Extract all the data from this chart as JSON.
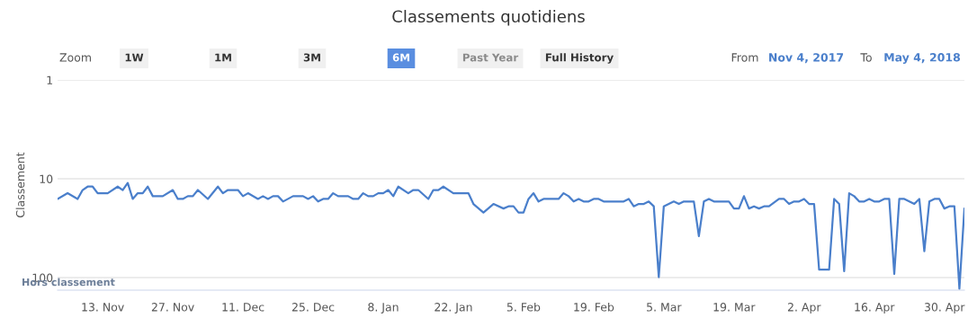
{
  "chart_data": {
    "type": "line",
    "title": "Classements quotidiens",
    "ylabel": "Classement",
    "annotations": [
      "Zoom",
      "1W",
      "1M",
      "3M",
      "6M",
      "Past Year",
      "Full History",
      "From",
      "Nov 4, 2017",
      "To",
      "May 4, 2018",
      "Hors classement"
    ],
    "x": [
      "2017-11-04",
      "2017-11-06",
      "2017-11-08",
      "2017-11-09",
      "2017-11-10",
      "2017-11-11",
      "2017-11-12",
      "2017-11-14",
      "2017-11-16",
      "2017-11-17",
      "2017-11-18",
      "2017-11-19",
      "2017-11-20",
      "2017-11-21",
      "2017-11-22",
      "2017-11-23",
      "2017-11-25",
      "2017-11-27",
      "2017-11-28",
      "2017-11-29",
      "2017-11-30",
      "2017-12-01",
      "2017-12-02",
      "2017-12-04",
      "2017-12-06",
      "2017-12-07",
      "2017-12-08",
      "2017-12-10",
      "2017-12-11",
      "2017-12-12",
      "2017-12-14",
      "2017-12-15",
      "2017-12-16",
      "2017-12-17",
      "2017-12-18",
      "2017-12-19",
      "2017-12-21",
      "2017-12-23",
      "2017-12-24",
      "2017-12-25",
      "2017-12-26",
      "2017-12-27",
      "2017-12-28",
      "2017-12-29",
      "2017-12-30",
      "2018-01-01",
      "2018-01-02",
      "2018-01-03",
      "2018-01-04",
      "2018-01-05",
      "2018-01-06",
      "2018-01-07",
      "2018-01-08",
      "2018-01-09",
      "2018-01-10",
      "2018-01-11",
      "2018-01-13",
      "2018-01-14",
      "2018-01-15",
      "2018-01-17",
      "2018-01-18",
      "2018-01-19",
      "2018-01-20",
      "2018-01-22",
      "2018-01-25",
      "2018-01-26",
      "2018-01-28",
      "2018-01-30",
      "2018-02-01",
      "2018-02-02",
      "2018-02-03",
      "2018-02-04",
      "2018-02-05",
      "2018-02-06",
      "2018-02-07",
      "2018-02-08",
      "2018-02-09",
      "2018-02-12",
      "2018-02-13",
      "2018-02-14",
      "2018-02-15",
      "2018-02-16",
      "2018-02-17",
      "2018-02-18",
      "2018-02-19",
      "2018-02-20",
      "2018-02-21",
      "2018-02-25",
      "2018-02-26",
      "2018-02-27",
      "2018-02-28",
      "2018-03-01",
      "2018-03-02",
      "2018-03-03",
      "2018-03-04",
      "2018-03-05",
      "2018-03-06",
      "2018-03-07",
      "2018-03-08",
      "2018-03-09",
      "2018-03-11",
      "2018-03-12",
      "2018-03-13",
      "2018-03-14",
      "2018-03-15",
      "2018-03-18",
      "2018-03-19",
      "2018-03-20",
      "2018-03-21",
      "2018-03-22",
      "2018-03-23",
      "2018-03-24",
      "2018-03-25",
      "2018-03-26",
      "2018-03-28",
      "2018-03-29",
      "2018-03-30",
      "2018-03-31",
      "2018-04-01",
      "2018-04-02",
      "2018-04-03",
      "2018-04-04",
      "2018-04-05",
      "2018-04-07",
      "2018-04-08",
      "2018-04-09",
      "2018-04-10",
      "2018-04-11",
      "2018-04-12",
      "2018-04-13",
      "2018-04-14",
      "2018-04-15",
      "2018-04-16",
      "2018-04-17",
      "2018-04-18",
      "2018-04-19",
      "2018-04-20",
      "2018-04-21",
      "2018-04-22",
      "2018-04-24",
      "2018-04-25",
      "2018-04-26",
      "2018-04-27",
      "2018-04-28",
      "2018-04-29",
      "2018-04-30",
      "2018-05-01",
      "2018-05-02",
      "2018-05-03",
      "2018-05-04"
    ],
    "series": [
      {
        "color": "#4a7fcb",
        "values": [
          16,
          14,
          16,
          13,
          12,
          12,
          14,
          14,
          12,
          13,
          11,
          16,
          14,
          14,
          12,
          15,
          15,
          13,
          16,
          16,
          15,
          15,
          13,
          16,
          12,
          14,
          13,
          13,
          15,
          14,
          16,
          15,
          16,
          15,
          15,
          17,
          15,
          15,
          16,
          15,
          17,
          16,
          16,
          14,
          15,
          15,
          16,
          16,
          14,
          15,
          15,
          14,
          14,
          13,
          15,
          12,
          14,
          13,
          13,
          16,
          13,
          13,
          12,
          14,
          14,
          18,
          22,
          18,
          20,
          19,
          19,
          22,
          22,
          16,
          14,
          17,
          16,
          16,
          14,
          15,
          17,
          16,
          17,
          17,
          16,
          16,
          17,
          17,
          16,
          19,
          18,
          18,
          17,
          19,
          99,
          19,
          18,
          17,
          18,
          17,
          17,
          38,
          17,
          16,
          17,
          17,
          20,
          20,
          15,
          20,
          19,
          20,
          19,
          19,
          16,
          16,
          18,
          17,
          17,
          16,
          18,
          18,
          83,
          83,
          16,
          18,
          86,
          14,
          15,
          17,
          17,
          16,
          17,
          17,
          16,
          16,
          92,
          16,
          16,
          18,
          16,
          54,
          17,
          16,
          16,
          20,
          19,
          19,
          130,
          20
        ]
      }
    ],
    "xlim": [
      "2017-11-04",
      "2018-05-04"
    ],
    "xticks": [
      {
        "value": "2017-11-13",
        "label": "13. Nov"
      },
      {
        "value": "2017-11-27",
        "label": "27. Nov"
      },
      {
        "value": "2017-12-11",
        "label": "11. Dec"
      },
      {
        "value": "2017-12-25",
        "label": "25. Dec"
      },
      {
        "value": "2018-01-08",
        "label": "8. Jan"
      },
      {
        "value": "2018-01-22",
        "label": "22. Jan"
      },
      {
        "value": "2018-02-05",
        "label": "5. Feb"
      },
      {
        "value": "2018-02-19",
        "label": "19. Feb"
      },
      {
        "value": "2018-03-05",
        "label": "5. Mar"
      },
      {
        "value": "2018-03-19",
        "label": "19. Mar"
      },
      {
        "value": "2018-04-02",
        "label": "2. Apr"
      },
      {
        "value": "2018-04-16",
        "label": "16. Apr"
      },
      {
        "value": "2018-04-30",
        "label": "30. Apr"
      }
    ],
    "ylim": [
      134,
      1
    ],
    "log": "y",
    "yticks": [
      1,
      10,
      100
    ],
    "grid": "y",
    "legend": false,
    "marker": "none",
    "line_style": "solid"
  }
}
